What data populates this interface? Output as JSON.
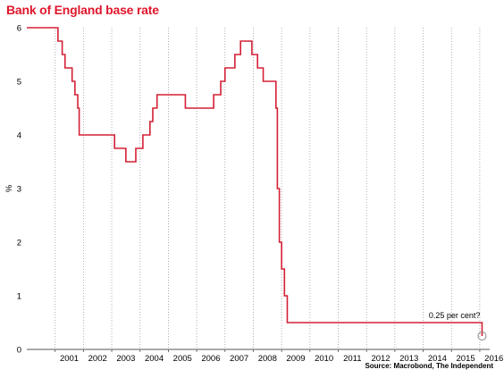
{
  "colors": {
    "title": "#e0162b",
    "line": "#d42035",
    "grid": "#9a9a9a",
    "axis": "#555555",
    "marker": "#888888"
  },
  "chart_data": {
    "type": "line",
    "title": "Bank of England base rate",
    "ylabel": "%",
    "xlabel": "",
    "source": "Source: Macrobond, The Independent",
    "grid": true,
    "ylim": [
      0,
      6
    ],
    "xlim": [
      2000.0,
      2016.35
    ],
    "y_ticks": [
      "0",
      "1",
      "2",
      "3",
      "4",
      "5",
      "6"
    ],
    "x_ticks": [
      "2001",
      "2002",
      "2003",
      "2004",
      "2005",
      "2006",
      "2007",
      "2008",
      "2009",
      "2010",
      "2011",
      "2012",
      "2013",
      "2014",
      "2015",
      "2016"
    ],
    "annotation": {
      "text": "0.25 per cent?",
      "x": 2016.08,
      "y": 0.25
    },
    "series": [
      {
        "step": true,
        "x": [
          2000.0,
          2001.1,
          2001.25,
          2001.35,
          2001.6,
          2001.7,
          2001.8,
          2001.85,
          2001.9,
          2003.1,
          2003.5,
          2003.85,
          2004.1,
          2004.35,
          2004.45,
          2004.6,
          2005.6,
          2006.6,
          2006.85,
          2007.0,
          2007.35,
          2007.55,
          2007.95,
          2008.15,
          2008.35,
          2008.8,
          2008.85,
          2008.92,
          2009.0,
          2009.1,
          2009.2,
          2016.08
        ],
        "y": [
          6.0,
          5.75,
          5.5,
          5.25,
          5.0,
          4.75,
          4.5,
          4.0,
          4.0,
          3.75,
          3.5,
          3.75,
          4.0,
          4.25,
          4.5,
          4.75,
          4.5,
          4.75,
          5.0,
          5.25,
          5.5,
          5.75,
          5.5,
          5.25,
          5.0,
          4.5,
          3.0,
          2.0,
          1.5,
          1.0,
          0.5,
          0.25
        ]
      }
    ]
  }
}
